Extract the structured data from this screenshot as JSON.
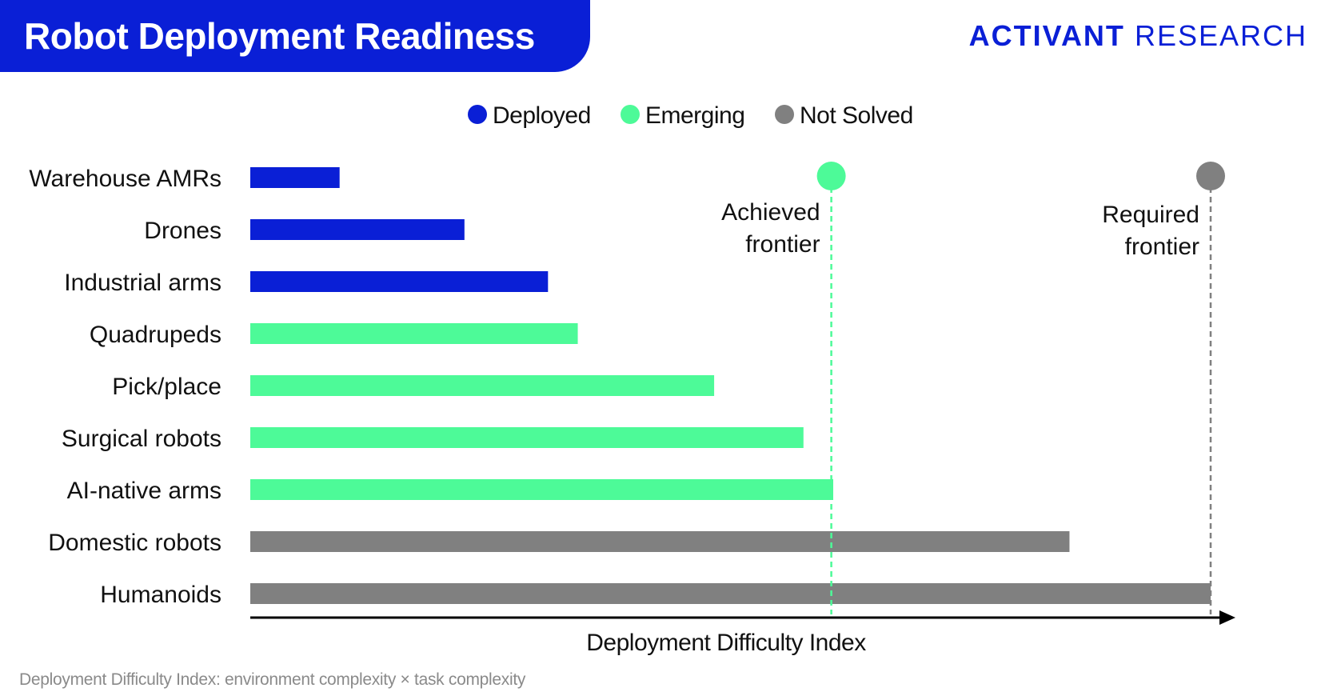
{
  "header": {
    "title": "Robot Deployment Readiness",
    "brand_primary": "ACTIVANT",
    "brand_secondary": "RESEARCH"
  },
  "footnote": "Deployment Difficulty Index: environment complexity × task complexity",
  "colors": {
    "brand": "#0a1fd6",
    "deployed": "#0a1fd6",
    "emerging": "#4dfa98",
    "not_solved": "#808080"
  },
  "chart_data": {
    "type": "bar",
    "orientation": "horizontal",
    "xlabel": "Deployment Difficulty Index",
    "legend": [
      {
        "name": "Deployed",
        "status": "deployed"
      },
      {
        "name": "Emerging",
        "status": "emerging"
      },
      {
        "name": "Not Solved",
        "status": "not_solved"
      }
    ],
    "legend_position": "top-center",
    "xlim": [
      0,
      100
    ],
    "bars": [
      {
        "label": "Warehouse AMRs",
        "value": 9.3,
        "status": "deployed"
      },
      {
        "label": "Drones",
        "value": 22.3,
        "status": "deployed"
      },
      {
        "label": "Industrial arms",
        "value": 31.0,
        "status": "deployed"
      },
      {
        "label": "Quadrupeds",
        "value": 34.1,
        "status": "emerging"
      },
      {
        "label": "Pick/place",
        "value": 48.3,
        "status": "emerging"
      },
      {
        "label": "Surgical robots",
        "value": 57.6,
        "status": "emerging"
      },
      {
        "label": "AI-native arms",
        "value": 60.7,
        "status": "emerging"
      },
      {
        "label": "Domestic robots",
        "value": 85.3,
        "status": "not_solved"
      },
      {
        "label": "Humanoids",
        "value": 100,
        "status": "not_solved"
      }
    ],
    "frontiers": [
      {
        "label_line1": "Achieved",
        "label_line2": "frontier",
        "value": 60.5,
        "status": "emerging"
      },
      {
        "label_line1": "Required",
        "label_line2": "frontier",
        "value": 100,
        "status": "not_solved"
      }
    ],
    "grid": false
  }
}
